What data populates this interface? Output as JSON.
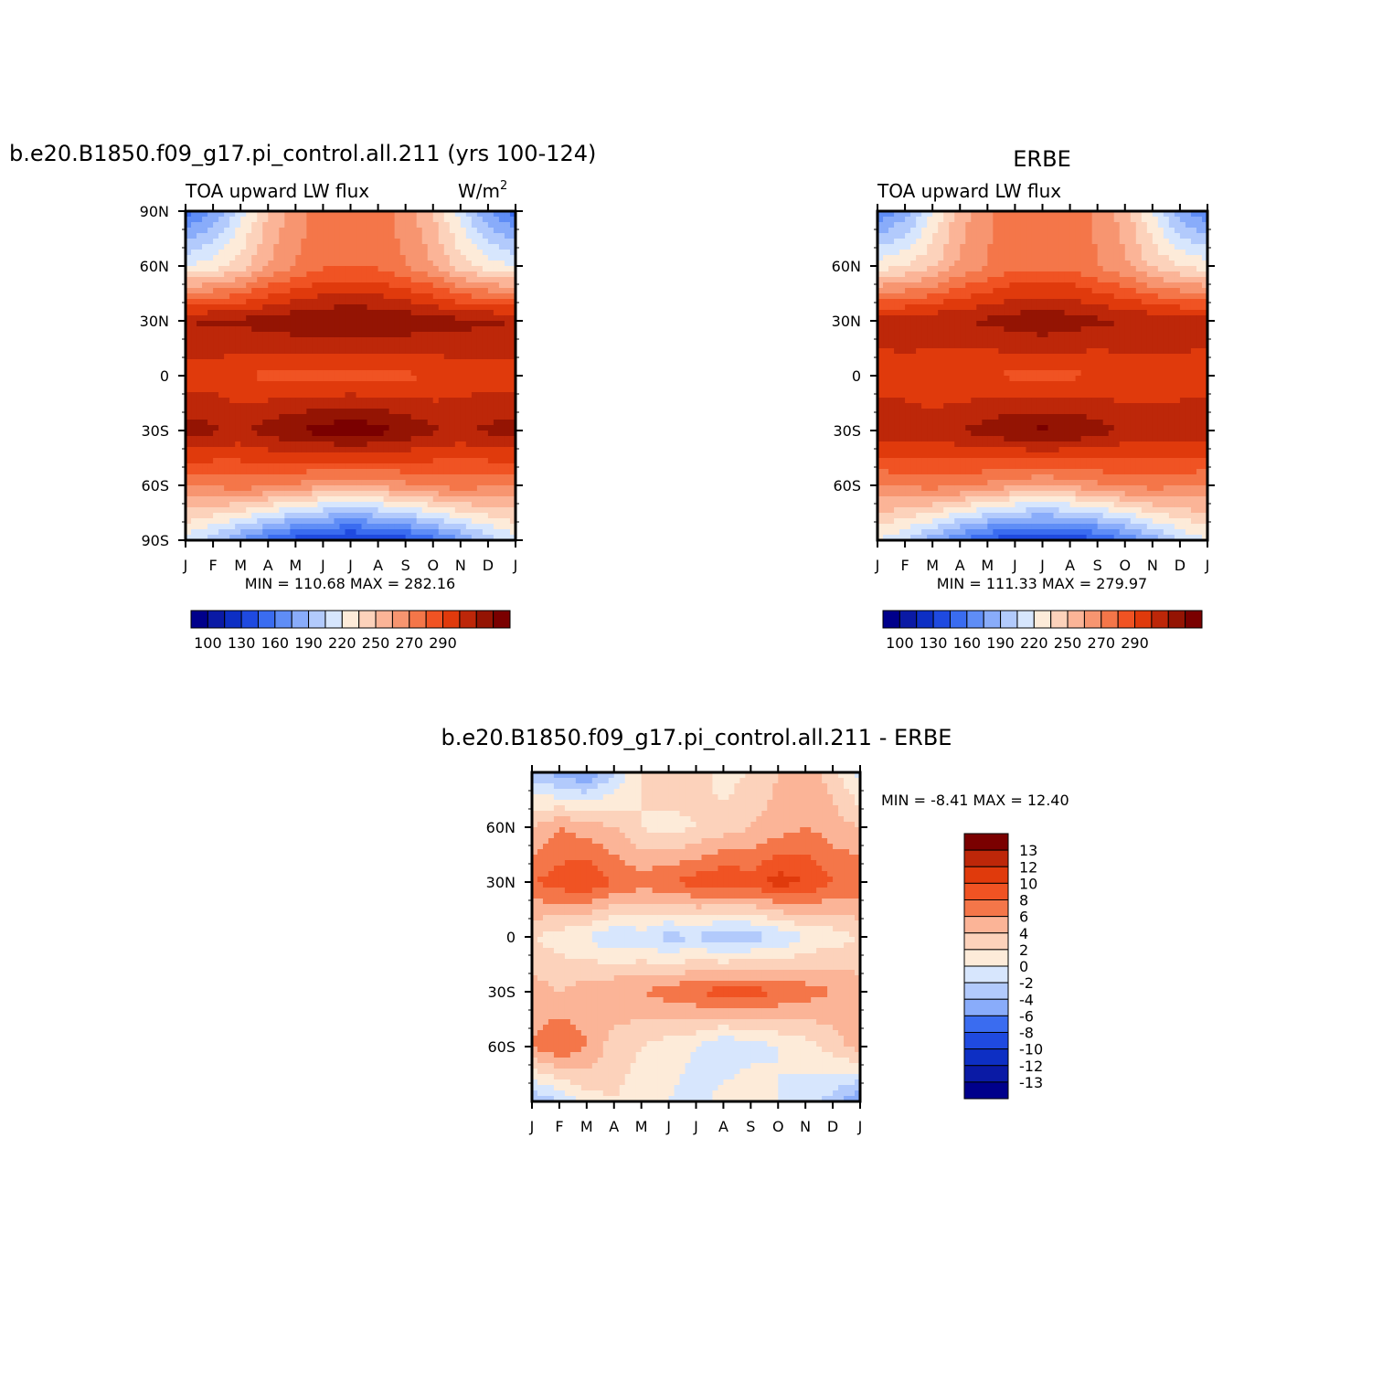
{
  "months": [
    "J",
    "F",
    "M",
    "A",
    "M",
    "J",
    "J",
    "A",
    "S",
    "O",
    "N",
    "D",
    "J"
  ],
  "levels_abs": [
    100,
    110,
    120,
    130,
    140,
    150,
    160,
    170,
    180,
    190,
    200,
    210,
    220,
    230,
    240,
    250,
    260,
    270,
    280,
    290
  ],
  "abs_colors": [
    "#00008b",
    "#0a1aa5",
    "#0d2fc4",
    "#1f4ae0",
    "#3a6cf0",
    "#5f8df6",
    "#89acfa",
    "#b2cafc",
    "#d7e6fd",
    "#fdebd9",
    "#fcd2bb",
    "#fbb497",
    "#f79570",
    "#f47649",
    "#f05323",
    "#e03a0c",
    "#bd2709",
    "#941403",
    "#7a0000"
  ],
  "diff_colors": [
    "#00008b",
    "#0a1aa5",
    "#0d2fc4",
    "#1f4ae0",
    "#3a6cf0",
    "#89acfa",
    "#b2cafc",
    "#d7e6fd",
    "#fdebd9",
    "#fcd2bb",
    "#fbb497",
    "#f47649",
    "#f05323",
    "#e03a0c",
    "#bd2709",
    "#7a0000"
  ],
  "panel1": {
    "title": "b.e20.B1850.f09_g17.pi_control.all.211 (yrs 100-124)",
    "left_label": "TOA upward LW flux",
    "units_base": "W/m",
    "units_exp": "2",
    "y_ticks": [
      "90N",
      "60N",
      "30N",
      "0",
      "30S",
      "60S",
      "90S"
    ],
    "stats": "MIN =  110.68 MAX =  282.16",
    "colorbar_labels": [
      "100",
      "130",
      "160",
      "190",
      "220",
      "250",
      "270",
      "290"
    ]
  },
  "panel2": {
    "title": "ERBE",
    "left_label": "TOA upward LW flux",
    "y_ticks": [
      "60N",
      "30N",
      "0",
      "30S",
      "60S"
    ],
    "stats": "MIN =  111.33 MAX =  279.97",
    "colorbar_labels": [
      "100",
      "130",
      "160",
      "190",
      "220",
      "250",
      "270",
      "290"
    ]
  },
  "panel3": {
    "title": "b.e20.B1850.f09_g17.pi_control.all.211 - ERBE",
    "y_ticks": [
      "60N",
      "30N",
      "0",
      "30S",
      "60S"
    ],
    "stats": "MIN =   -8.41 MAX =   12.40",
    "colorbar_labels": [
      "13",
      "12",
      "10",
      "8",
      "6",
      "4",
      "2",
      "0",
      "-2",
      "-4",
      "-6",
      "-8",
      "-10",
      "-12",
      "-13"
    ]
  },
  "chart_data": [
    {
      "type": "heatmap",
      "title": "b.e20.B1850.f09_g17.pi_control.all.211 (yrs 100-124)",
      "variable": "TOA upward LW flux",
      "units": "W/m2",
      "x": [
        "J",
        "F",
        "M",
        "A",
        "M",
        "J",
        "J",
        "A",
        "S",
        "O",
        "N",
        "D",
        "J"
      ],
      "y": [
        "90N",
        "60N",
        "30N",
        "0",
        "30S",
        "60S",
        "90S"
      ],
      "values": [
        [
          135,
          150,
          175,
          200,
          215,
          225,
          225,
          225,
          215,
          200,
          175,
          150,
          135
        ],
        [
          180,
          185,
          195,
          210,
          220,
          228,
          228,
          228,
          220,
          210,
          195,
          185,
          180
        ],
        [
          260,
          262,
          263,
          265,
          268,
          270,
          272,
          270,
          268,
          265,
          263,
          262,
          260
        ],
        [
          245,
          245,
          240,
          238,
          238,
          236,
          235,
          236,
          238,
          240,
          245,
          245,
          245
        ],
        [
          265,
          262,
          258,
          265,
          270,
          275,
          278,
          275,
          268,
          262,
          258,
          262,
          265
        ],
        [
          220,
          222,
          225,
          222,
          218,
          212,
          210,
          212,
          218,
          222,
          225,
          222,
          220
        ],
        [
          175,
          165,
          150,
          135,
          125,
          118,
          115,
          118,
          125,
          135,
          150,
          165,
          175
        ]
      ],
      "min": 110.68,
      "max": 282.16,
      "levels": [
        100,
        110,
        120,
        130,
        140,
        150,
        160,
        170,
        180,
        190,
        200,
        210,
        220,
        230,
        240,
        250,
        260,
        270,
        280,
        290
      ]
    },
    {
      "type": "heatmap",
      "title": "ERBE",
      "variable": "TOA upward LW flux",
      "units": "W/m2",
      "x": [
        "J",
        "F",
        "M",
        "A",
        "M",
        "J",
        "J",
        "A",
        "S",
        "O",
        "N",
        "D",
        "J"
      ],
      "y": [
        "90N",
        "60N",
        "30N",
        "0",
        "30S",
        "60S",
        "90S"
      ],
      "values": [
        [
          140,
          155,
          180,
          205,
          218,
          225,
          225,
          225,
          218,
          205,
          180,
          155,
          140
        ],
        [
          185,
          190,
          198,
          212,
          220,
          228,
          228,
          228,
          220,
          212,
          198,
          190,
          185
        ],
        [
          255,
          257,
          258,
          260,
          262,
          265,
          268,
          265,
          262,
          260,
          258,
          257,
          255
        ],
        [
          245,
          245,
          242,
          240,
          240,
          238,
          238,
          238,
          240,
          242,
          245,
          245,
          245
        ],
        [
          258,
          256,
          255,
          260,
          265,
          270,
          272,
          270,
          265,
          258,
          255,
          256,
          258
        ],
        [
          220,
          222,
          224,
          222,
          218,
          212,
          210,
          212,
          218,
          222,
          224,
          222,
          220
        ],
        [
          180,
          170,
          155,
          140,
          128,
          120,
          118,
          120,
          128,
          140,
          155,
          170,
          180
        ]
      ],
      "min": 111.33,
      "max": 279.97,
      "levels": [
        100,
        110,
        120,
        130,
        140,
        150,
        160,
        170,
        180,
        190,
        200,
        210,
        220,
        230,
        240,
        250,
        260,
        270,
        280,
        290
      ]
    },
    {
      "type": "heatmap",
      "title": "b.e20.B1850.f09_g17.pi_control.all.211 - ERBE",
      "variable": "difference",
      "units": "W/m2",
      "x": [
        "J",
        "F",
        "M",
        "A",
        "M",
        "J",
        "J",
        "A",
        "S",
        "O",
        "N",
        "D",
        "J"
      ],
      "y": [
        "90N",
        "60N",
        "30N",
        "0",
        "30S",
        "60S",
        "90S"
      ],
      "values": [
        [
          -3,
          -5,
          -6,
          -2,
          2,
          4,
          3,
          1,
          2,
          4,
          5,
          3,
          -1
        ],
        [
          4,
          6,
          5,
          4,
          2,
          1,
          2,
          3,
          4,
          5,
          6,
          5,
          4
        ],
        [
          8,
          9,
          10,
          8,
          7,
          8,
          9,
          10,
          9,
          11,
          10,
          8,
          8
        ],
        [
          2,
          1,
          0,
          -2,
          -1,
          -3,
          -2,
          -4,
          -3,
          -2,
          0,
          1,
          2
        ],
        [
          5,
          4,
          5,
          6,
          6,
          7,
          8,
          9,
          9,
          8,
          7,
          6,
          5
        ],
        [
          6,
          8,
          6,
          3,
          2,
          1,
          0,
          -2,
          -1,
          0,
          1,
          3,
          5
        ],
        [
          -4,
          -2,
          1,
          2,
          1,
          0,
          -1,
          1,
          2,
          0,
          -1,
          -3,
          -6
        ]
      ],
      "min": -8.41,
      "max": 12.4,
      "levels": [
        -13,
        -12,
        -10,
        -8,
        -6,
        -4,
        -2,
        0,
        2,
        4,
        6,
        8,
        10,
        12,
        13
      ]
    }
  ]
}
